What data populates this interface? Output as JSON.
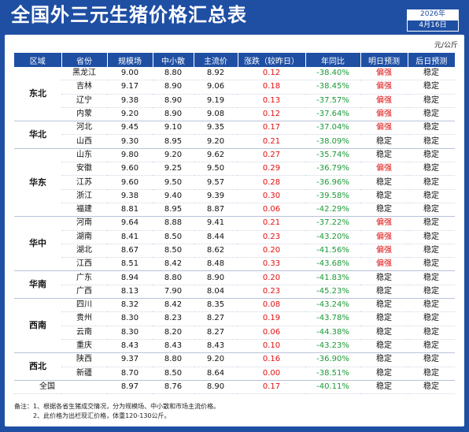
{
  "title": "全国外三元生猪价格汇总表",
  "date": {
    "year": "2026年",
    "day": "4月16日"
  },
  "unit": "元/公斤",
  "headers": [
    "区域",
    "省份",
    "规模场",
    "中小散",
    "主流价",
    "涨跌（较昨日）",
    "年同比",
    "明日预测",
    "后日预测"
  ],
  "groups": [
    {
      "region": "东北",
      "rows": [
        {
          "province": "黑龙江",
          "large": "9.00",
          "small": "8.80",
          "main": "8.92",
          "change": "0.12",
          "yoy": "-38.40%",
          "tmr": "偏强",
          "after": "稳定"
        },
        {
          "province": "吉林",
          "large": "9.17",
          "small": "8.90",
          "main": "9.06",
          "change": "0.18",
          "yoy": "-38.45%",
          "tmr": "偏强",
          "after": "稳定"
        },
        {
          "province": "辽宁",
          "large": "9.38",
          "small": "8.90",
          "main": "9.19",
          "change": "0.13",
          "yoy": "-37.57%",
          "tmr": "偏强",
          "after": "稳定"
        },
        {
          "province": "内蒙",
          "large": "9.20",
          "small": "8.90",
          "main": "9.08",
          "change": "0.12",
          "yoy": "-37.64%",
          "tmr": "偏强",
          "after": "稳定"
        }
      ]
    },
    {
      "region": "华北",
      "rows": [
        {
          "province": "河北",
          "large": "9.45",
          "small": "9.10",
          "main": "9.35",
          "change": "0.17",
          "yoy": "-37.04%",
          "tmr": "偏强",
          "after": "稳定"
        },
        {
          "province": "山西",
          "large": "9.30",
          "small": "8.95",
          "main": "9.20",
          "change": "0.21",
          "yoy": "-38.09%",
          "tmr": "稳定",
          "after": "稳定"
        }
      ]
    },
    {
      "region": "华东",
      "rows": [
        {
          "province": "山东",
          "large": "9.80",
          "small": "9.20",
          "main": "9.62",
          "change": "0.27",
          "yoy": "-35.74%",
          "tmr": "稳定",
          "after": "稳定"
        },
        {
          "province": "安徽",
          "large": "9.60",
          "small": "9.25",
          "main": "9.50",
          "change": "0.29",
          "yoy": "-36.79%",
          "tmr": "偏强",
          "after": "稳定"
        },
        {
          "province": "江苏",
          "large": "9.60",
          "small": "9.50",
          "main": "9.57",
          "change": "0.28",
          "yoy": "-36.96%",
          "tmr": "稳定",
          "after": "稳定"
        },
        {
          "province": "浙江",
          "large": "9.38",
          "small": "9.40",
          "main": "9.39",
          "change": "0.30",
          "yoy": "-39.58%",
          "tmr": "稳定",
          "after": "稳定"
        },
        {
          "province": "福建",
          "large": "8.81",
          "small": "8.95",
          "main": "8.87",
          "change": "0.06",
          "yoy": "-42.29%",
          "tmr": "稳定",
          "after": "稳定"
        }
      ]
    },
    {
      "region": "华中",
      "rows": [
        {
          "province": "河南",
          "large": "9.64",
          "small": "8.88",
          "main": "9.41",
          "change": "0.21",
          "yoy": "-37.22%",
          "tmr": "偏强",
          "after": "稳定"
        },
        {
          "province": "湖南",
          "large": "8.41",
          "small": "8.50",
          "main": "8.44",
          "change": "0.23",
          "yoy": "-43.20%",
          "tmr": "偏强",
          "after": "稳定"
        },
        {
          "province": "湖北",
          "large": "8.67",
          "small": "8.50",
          "main": "8.62",
          "change": "0.20",
          "yoy": "-41.56%",
          "tmr": "偏强",
          "after": "稳定"
        },
        {
          "province": "江西",
          "large": "8.51",
          "small": "8.42",
          "main": "8.48",
          "change": "0.33",
          "yoy": "-43.68%",
          "tmr": "偏强",
          "after": "稳定"
        }
      ]
    },
    {
      "region": "华南",
      "rows": [
        {
          "province": "广东",
          "large": "8.94",
          "small": "8.80",
          "main": "8.90",
          "change": "0.20",
          "yoy": "-41.83%",
          "tmr": "稳定",
          "after": "稳定"
        },
        {
          "province": "广西",
          "large": "8.13",
          "small": "7.90",
          "main": "8.04",
          "change": "0.23",
          "yoy": "-45.23%",
          "tmr": "稳定",
          "after": "稳定"
        }
      ]
    },
    {
      "region": "西南",
      "rows": [
        {
          "province": "四川",
          "large": "8.32",
          "small": "8.42",
          "main": "8.35",
          "change": "0.08",
          "yoy": "-43.24%",
          "tmr": "稳定",
          "after": "稳定"
        },
        {
          "province": "贵州",
          "large": "8.30",
          "small": "8.23",
          "main": "8.27",
          "change": "0.19",
          "yoy": "-43.78%",
          "tmr": "稳定",
          "after": "稳定"
        },
        {
          "province": "云南",
          "large": "8.30",
          "small": "8.20",
          "main": "8.27",
          "change": "0.06",
          "yoy": "-44.38%",
          "tmr": "稳定",
          "after": "稳定"
        },
        {
          "province": "重庆",
          "large": "8.43",
          "small": "8.43",
          "main": "8.43",
          "change": "0.10",
          "yoy": "-43.23%",
          "tmr": "稳定",
          "after": "稳定"
        }
      ]
    },
    {
      "region": "西北",
      "rows": [
        {
          "province": "陕西",
          "large": "9.37",
          "small": "8.80",
          "main": "9.20",
          "change": "0.16",
          "yoy": "-36.90%",
          "tmr": "稳定",
          "after": "稳定"
        },
        {
          "province": "新疆",
          "large": "8.70",
          "small": "8.50",
          "main": "8.64",
          "change": "0.00",
          "yoy": "-38.51%",
          "tmr": "稳定",
          "after": "稳定"
        }
      ]
    }
  ],
  "national": {
    "label": "全国",
    "large": "8.97",
    "small": "8.76",
    "main": "8.90",
    "change": "0.17",
    "yoy": "-40.11%",
    "tmr": "稳定",
    "after": "稳定"
  },
  "notes": [
    "备注：1、根据各省生猪成交情况，分为规模场、中小散和市场主流价格。",
    "2、此价格为出栏现汇价格，体重120-130公斤。"
  ],
  "colors": {
    "header_bg": "#1f4fa3",
    "up": "#e01010",
    "down": "#1a9a35",
    "strong": "#e01010"
  }
}
